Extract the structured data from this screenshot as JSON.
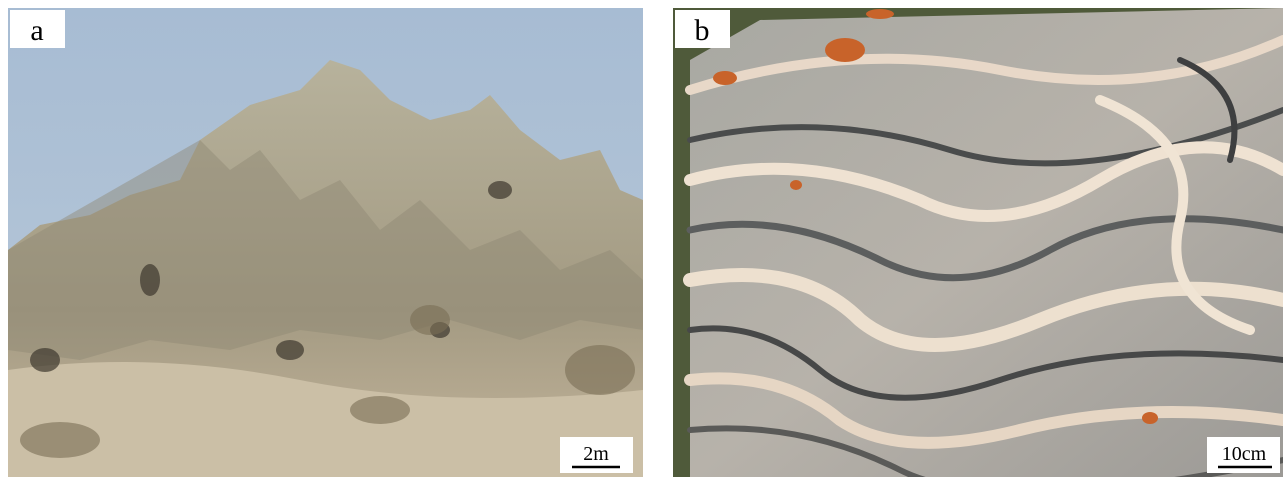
{
  "panels": [
    {
      "label": "a",
      "scale_bar": "2m"
    },
    {
      "label": "b",
      "scale_bar": "10cm"
    }
  ]
}
